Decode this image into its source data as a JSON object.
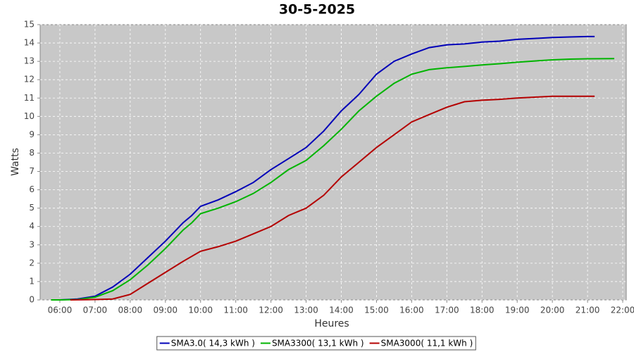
{
  "chart_data": {
    "type": "line",
    "title": "30-5-2025",
    "x_label": "Heures",
    "y_label": "Watts",
    "xlim": [
      5.44,
      22.1
    ],
    "ylim": [
      0,
      15
    ],
    "xticks": [
      {
        "value": 6,
        "label": "06:00"
      },
      {
        "value": 7,
        "label": "07:00"
      },
      {
        "value": 8,
        "label": "08:00"
      },
      {
        "value": 9,
        "label": "09:00"
      },
      {
        "value": 10,
        "label": "10:00"
      },
      {
        "value": 11,
        "label": "11:00"
      },
      {
        "value": 12,
        "label": "12:00"
      },
      {
        "value": 13,
        "label": "13:00"
      },
      {
        "value": 14,
        "label": "14:00"
      },
      {
        "value": 15,
        "label": "15:00"
      },
      {
        "value": 16,
        "label": "16:00"
      },
      {
        "value": 17,
        "label": "17:00"
      },
      {
        "value": 18,
        "label": "18:00"
      },
      {
        "value": 19,
        "label": "19:00"
      },
      {
        "value": 20,
        "label": "20:00"
      },
      {
        "value": 21,
        "label": "21:00"
      },
      {
        "value": 22,
        "label": "22:00"
      }
    ],
    "yticks": [
      0,
      1,
      2,
      3,
      4,
      5,
      6,
      7,
      8,
      9,
      10,
      11,
      12,
      13,
      14,
      15
    ],
    "grid": true,
    "series": [
      {
        "name": "SMA3.0( 14,3 kWh )",
        "color": "#0000b8",
        "x": [
          5.75,
          6,
          6.5,
          7,
          7.5,
          8,
          8.5,
          9,
          9.5,
          9.75,
          10,
          10.5,
          11,
          11.5,
          12,
          12.5,
          13,
          13.5,
          14,
          14.5,
          15,
          15.5,
          16,
          16.5,
          17,
          17.5,
          18,
          18.5,
          19,
          19.5,
          20,
          20.5,
          21,
          21.2
        ],
        "values": [
          0,
          0,
          0.05,
          0.2,
          0.7,
          1.4,
          2.3,
          3.2,
          4.2,
          4.6,
          5.1,
          5.45,
          5.9,
          6.4,
          7.1,
          7.7,
          8.3,
          9.2,
          10.3,
          11.2,
          12.3,
          13.0,
          13.4,
          13.75,
          13.9,
          13.95,
          14.05,
          14.1,
          14.2,
          14.25,
          14.3,
          14.33,
          14.35,
          14.35
        ]
      },
      {
        "name": "SMA3300( 13,1 kWh )",
        "color": "#00b400",
        "x": [
          5.75,
          6,
          6.5,
          7,
          7.5,
          8,
          8.5,
          9,
          9.5,
          9.75,
          10,
          10.5,
          11,
          11.5,
          12,
          12.5,
          13,
          13.5,
          14,
          14.5,
          15,
          15.5,
          16,
          16.5,
          17,
          17.5,
          18,
          18.5,
          19,
          19.5,
          20,
          20.5,
          21,
          21.76
        ],
        "values": [
          0,
          0,
          0.02,
          0.15,
          0.5,
          1.1,
          1.9,
          2.8,
          3.8,
          4.2,
          4.7,
          5.0,
          5.35,
          5.8,
          6.4,
          7.1,
          7.6,
          8.4,
          9.3,
          10.3,
          11.1,
          11.8,
          12.3,
          12.55,
          12.65,
          12.72,
          12.8,
          12.87,
          12.95,
          13.02,
          13.08,
          13.12,
          13.14,
          13.15
        ]
      },
      {
        "name": "SMA3000( 11,1 kWh )",
        "color": "#b40000",
        "x": [
          6.3,
          7,
          7.5,
          8,
          8.5,
          9,
          9.5,
          10,
          10.5,
          11,
          11.5,
          12,
          12.5,
          13,
          13.5,
          14,
          14.5,
          15,
          15.5,
          16,
          16.5,
          17,
          17.5,
          18,
          18.5,
          19,
          19.5,
          20,
          20.5,
          21.2
        ],
        "values": [
          0,
          0.02,
          0.05,
          0.3,
          0.9,
          1.5,
          2.1,
          2.65,
          2.9,
          3.2,
          3.6,
          4.0,
          4.6,
          5.0,
          5.7,
          6.7,
          7.5,
          8.3,
          9.0,
          9.7,
          10.1,
          10.5,
          10.8,
          10.88,
          10.93,
          11.0,
          11.05,
          11.1,
          11.1,
          11.1
        ]
      }
    ]
  }
}
